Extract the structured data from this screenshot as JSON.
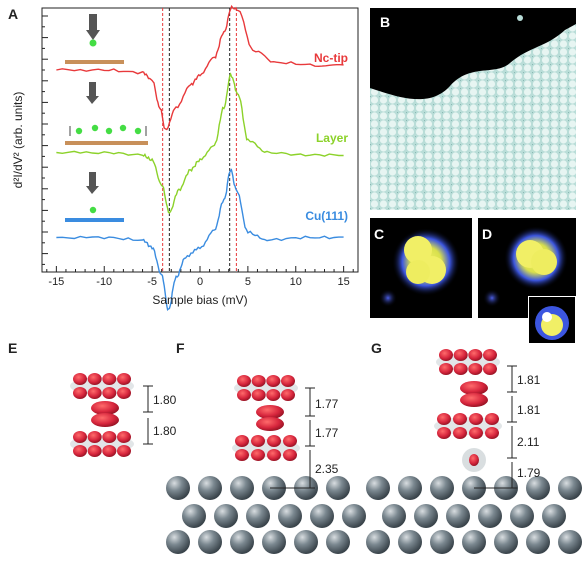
{
  "panels": {
    "A": "A",
    "B": "B",
    "C": "C",
    "D": "D",
    "E": "E",
    "F": "F",
    "G": "G"
  },
  "chart_data": {
    "type": "line",
    "xlabel": "Sample bias (mV)",
    "ylabel": "d²I/dV² (arb. units)",
    "xlim": [
      -16.5,
      16.5
    ],
    "x_ticks": [
      -15,
      -10,
      -5,
      0,
      5,
      10,
      15
    ],
    "x_tick_labels": [
      "-15",
      "-10",
      "-5",
      "0",
      "5",
      "10",
      "15"
    ],
    "series": [
      {
        "name": "Nc-tip",
        "color": "#e8393b",
        "x": [
          -15,
          -10,
          -6,
          -5,
          -4.2,
          -3.6,
          -2.5,
          -1,
          0,
          1.5,
          2.5,
          3.3,
          4,
          5.5,
          8,
          12,
          15
        ],
        "y": [
          0.7,
          0.7,
          0.69,
          0.66,
          0.55,
          0.46,
          0.55,
          0.64,
          0.68,
          0.75,
          0.85,
          0.95,
          0.94,
          0.78,
          0.73,
          0.72,
          0.72
        ]
      },
      {
        "name": "Layer",
        "color": "#8cd22a",
        "x": [
          -15,
          -10,
          -6,
          -5,
          -4,
          -3.2,
          -2.2,
          -1,
          0,
          1.5,
          2.5,
          3.2,
          4,
          5,
          7,
          11,
          15
        ],
        "y": [
          0.37,
          0.37,
          0.36,
          0.34,
          0.24,
          0.13,
          0.22,
          0.3,
          0.34,
          0.4,
          0.55,
          0.68,
          0.6,
          0.42,
          0.37,
          0.36,
          0.36
        ]
      },
      {
        "name": "Cu(111)",
        "color": "#3a8ce0",
        "x": [
          -15,
          -10,
          -6,
          -5,
          -4,
          -3.3,
          -2.5,
          -1.5,
          0,
          1.5,
          2.5,
          3.2,
          3.8,
          5,
          7,
          11,
          15
        ],
        "y": [
          0.03,
          0.03,
          0.02,
          -0.01,
          -0.12,
          -0.26,
          -0.13,
          -0.05,
          -0.01,
          0.06,
          0.18,
          0.3,
          0.22,
          0.05,
          0.02,
          0.03,
          0.03
        ]
      }
    ],
    "vlines": [
      {
        "x": -3.9,
        "color": "#e8393b"
      },
      {
        "x": -3.2,
        "color": "#222222"
      },
      {
        "x": 3.1,
        "color": "#222222"
      },
      {
        "x": 3.8,
        "color": "#e8393b"
      }
    ]
  },
  "distances": {
    "E": [
      "1.80",
      "1.80"
    ],
    "F": [
      "1.77",
      "1.77",
      "2.35"
    ],
    "G": [
      "1.81",
      "1.81",
      "2.11",
      "1.79"
    ]
  }
}
